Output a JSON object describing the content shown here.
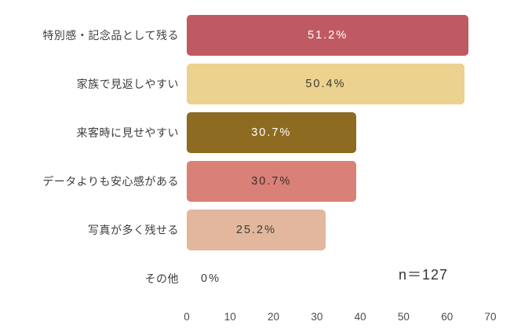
{
  "chart_data": {
    "type": "bar",
    "orientation": "horizontal",
    "title": "",
    "categories": [
      "特別感・記念品として残る",
      "家族で見返しやすい",
      "来客時に見せやすい",
      "データよりも安心感がある",
      "写真が多く残せる",
      "その他"
    ],
    "values": [
      65,
      64,
      39,
      39,
      32,
      0
    ],
    "value_note": "bar lengths correspond to respondent counts (percent of n=127)",
    "percent_labels": [
      "51.2%",
      "50.4%",
      "30.7%",
      "30.7%",
      "25.2%",
      "0%"
    ],
    "bar_colors": [
      "#c05a62",
      "#ecd28f",
      "#8d6b20",
      "#d98078",
      "#e2b79d",
      "#ffffff"
    ],
    "label_colors": [
      "#ffffff",
      "#3f3b33",
      "#ffffff",
      "#3a2d2a",
      "#3f3b33",
      "#3f3b33"
    ],
    "x_ticks": [
      0,
      10,
      20,
      30,
      40,
      50,
      60,
      70
    ],
    "xlim": [
      0,
      70
    ],
    "annotation": "n＝127",
    "grid": false,
    "legend": false
  }
}
